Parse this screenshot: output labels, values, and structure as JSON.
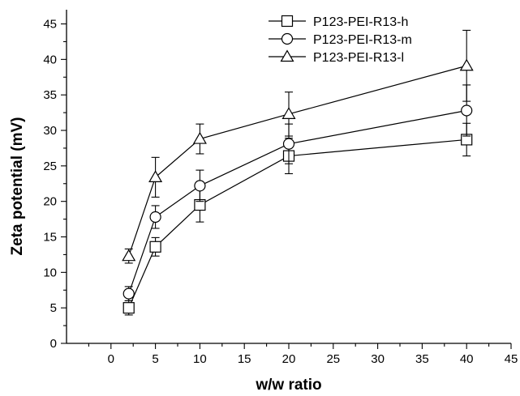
{
  "chart_data": {
    "type": "line",
    "title": "",
    "xlabel": "w/w ratio",
    "ylabel": "Zeta potential (mV)",
    "xlim": [
      -5,
      45
    ],
    "ylim": [
      0,
      47
    ],
    "xticks": [
      0,
      5,
      10,
      15,
      20,
      25,
      30,
      35,
      40,
      45
    ],
    "yticks": [
      0,
      5,
      10,
      15,
      20,
      25,
      30,
      35,
      40,
      45
    ],
    "grid": false,
    "legend_position": "top-right",
    "x": [
      2,
      5,
      10,
      20,
      40
    ],
    "series": [
      {
        "name": "P123-PEI-R13-h",
        "marker": "square",
        "values": [
          5.0,
          13.6,
          19.5,
          26.4,
          28.7
        ],
        "errors": [
          1.0,
          1.3,
          2.4,
          2.5,
          2.3
        ]
      },
      {
        "name": "P123-PEI-R13-m",
        "marker": "circle",
        "values": [
          7.0,
          17.8,
          22.2,
          28.1,
          32.8
        ],
        "errors": [
          1.0,
          1.6,
          2.2,
          2.8,
          3.6
        ]
      },
      {
        "name": "P123-PEI-R13-l",
        "marker": "triangle",
        "values": [
          12.3,
          23.4,
          28.8,
          32.3,
          39.1
        ],
        "errors": [
          1.0,
          2.8,
          2.1,
          3.1,
          5.0
        ]
      }
    ]
  }
}
